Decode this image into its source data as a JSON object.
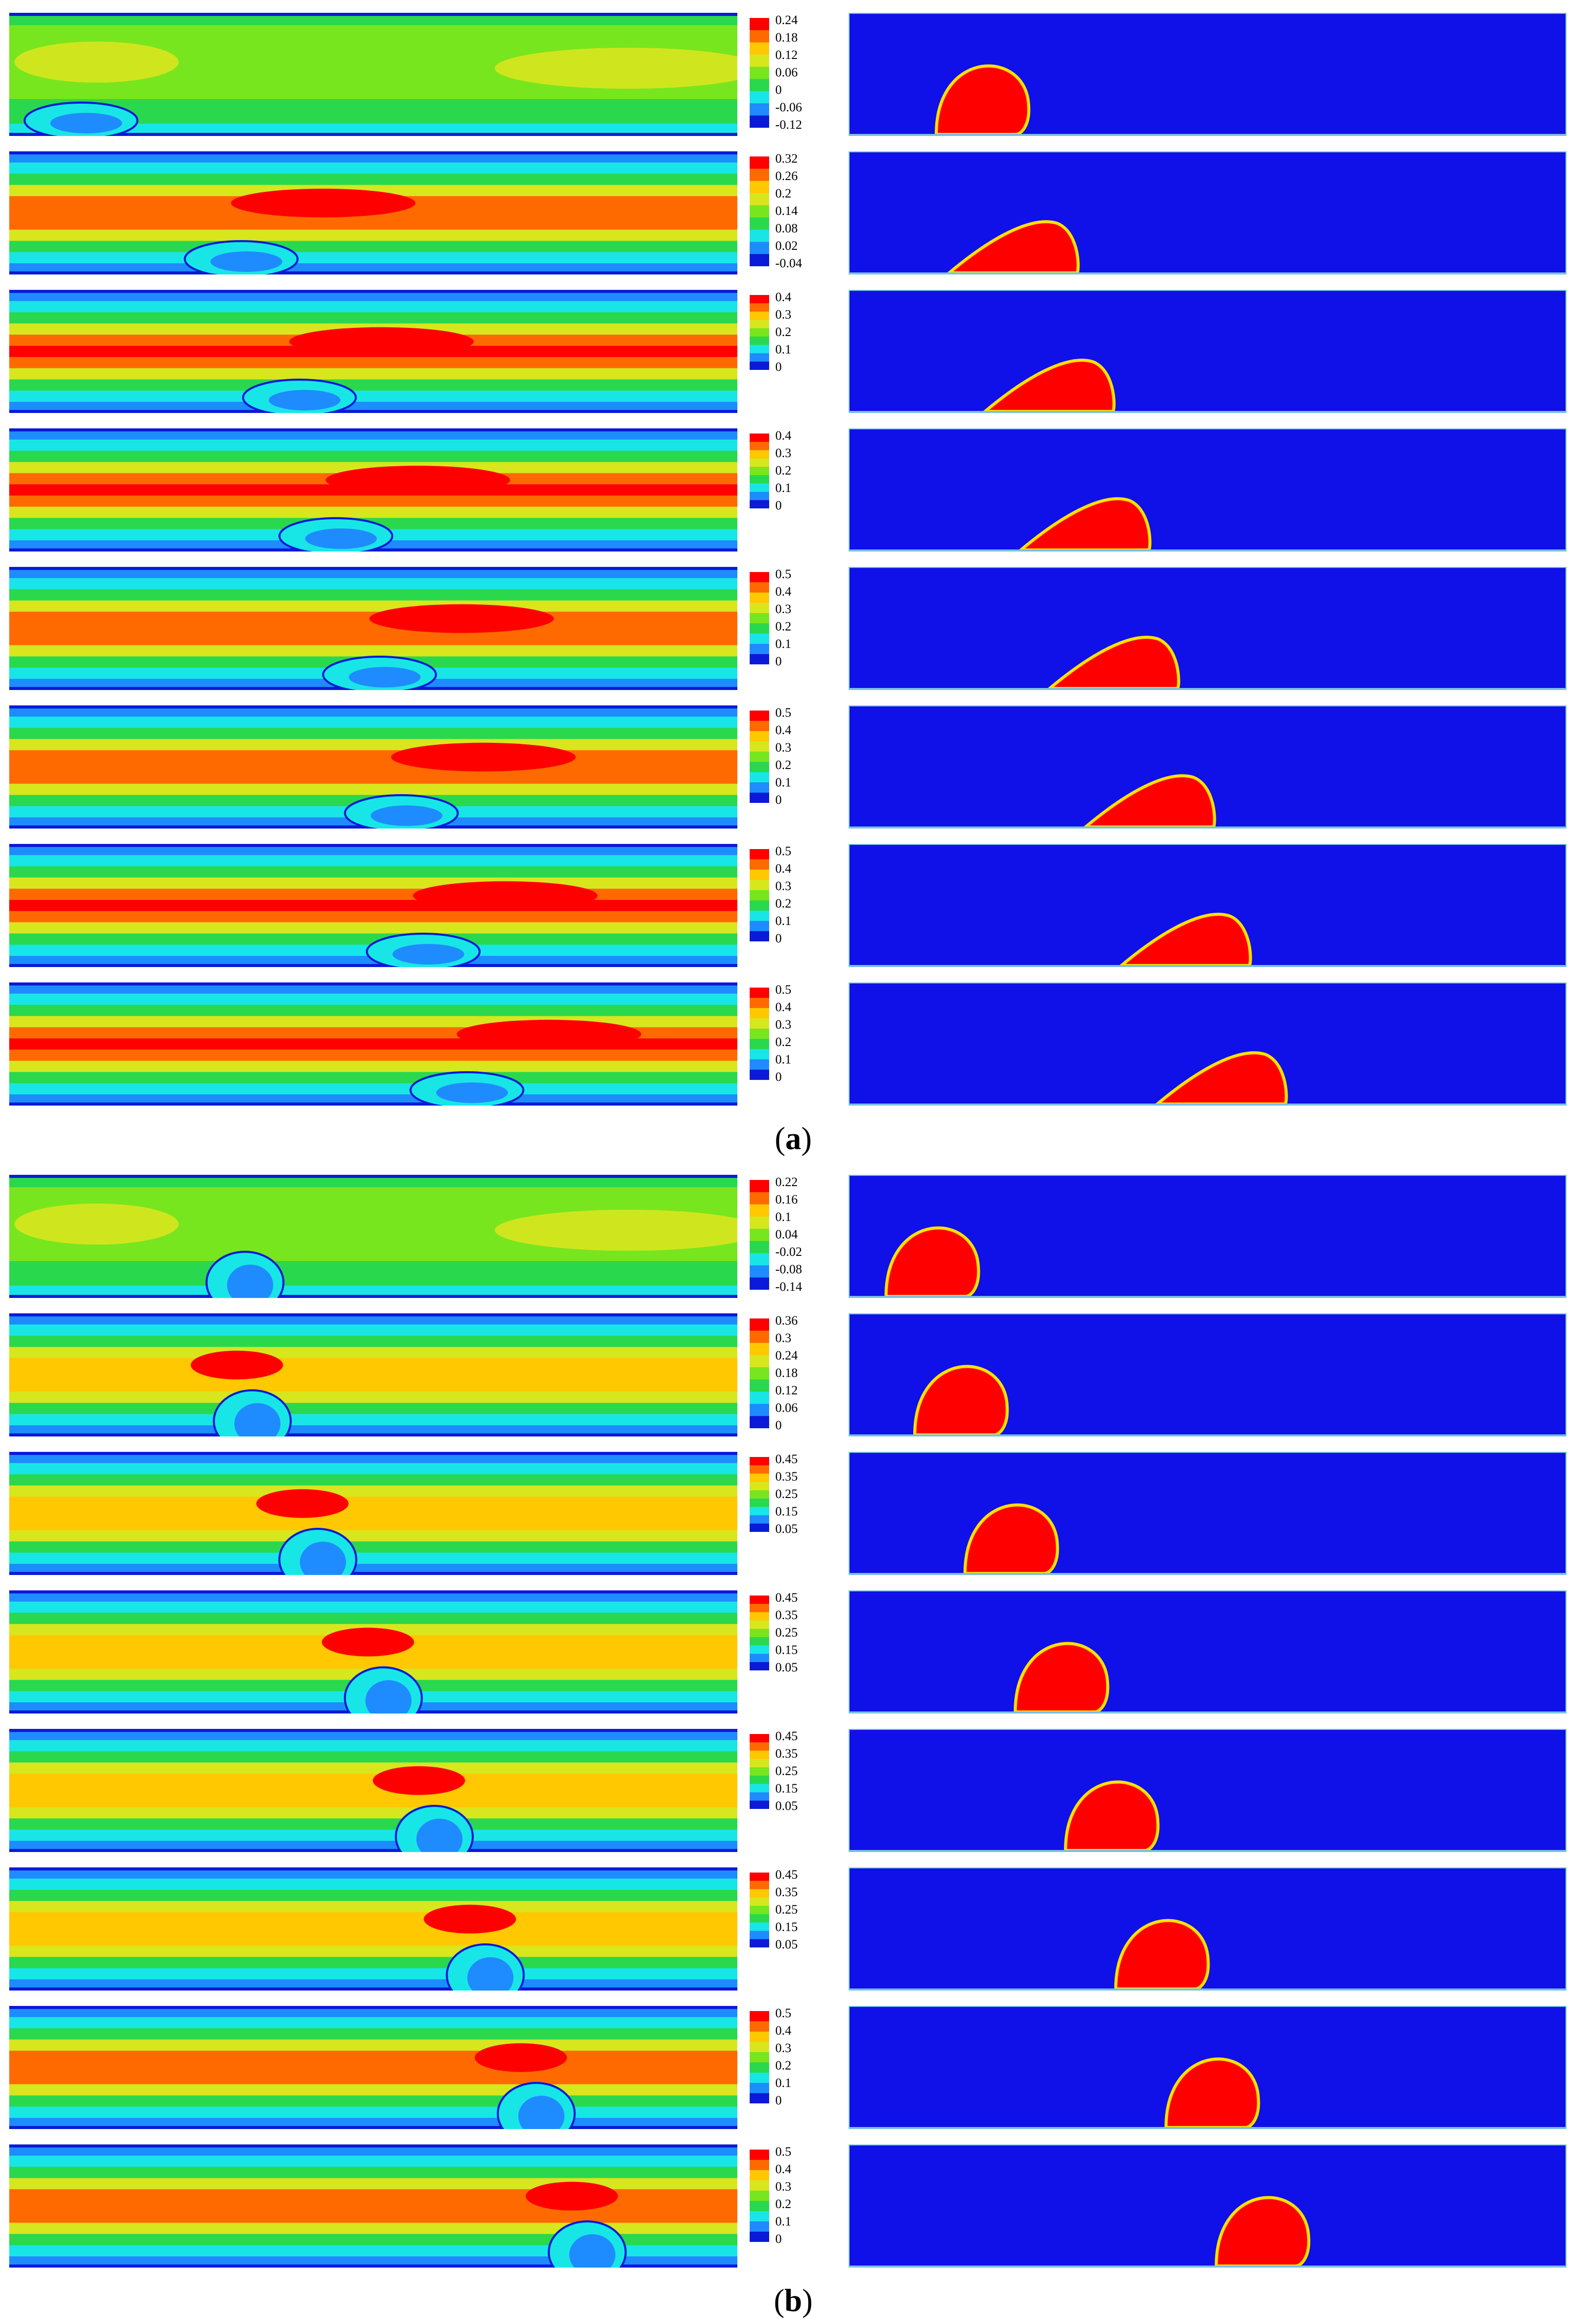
{
  "figure": {
    "caption_a": "a",
    "caption_b": "b",
    "colors": {
      "phase_background": "#1010e8",
      "droplet": "#ff0000",
      "wall": "#7ac0e0"
    },
    "palette": [
      "#0a1ad8",
      "#1e8cff",
      "#18e6e6",
      "#2ad84e",
      "#78e61e",
      "#d8e61e",
      "#ffc800",
      "#ff6a00",
      "#ff0000"
    ],
    "part_a": [
      {
        "ticks": [
          "0.24",
          "0.18",
          "0.12",
          "0.06",
          "0",
          "-0.06",
          "-0.12"
        ],
        "droplet_position": 0.19,
        "droplet_shape": "round",
        "field": "A1",
        "vortex_position": 0.0
      },
      {
        "ticks": [
          "0.32",
          "0.26",
          "0.2",
          "0.14",
          "0.08",
          "0.02",
          "-0.04"
        ],
        "droplet_position": 0.24,
        "droplet_shape": "slanted",
        "field": "A2",
        "vortex_position": 0.22
      },
      {
        "ticks": [
          "0.4",
          "0.3",
          "0.2",
          "0.1",
          "0"
        ],
        "droplet_position": 0.29,
        "droplet_shape": "slanted",
        "field": "A3",
        "vortex_position": 0.3
      },
      {
        "ticks": [
          "0.4",
          "0.3",
          "0.2",
          "0.1",
          "0"
        ],
        "droplet_position": 0.34,
        "droplet_shape": "slanted",
        "field": "A3",
        "vortex_position": 0.35
      },
      {
        "ticks": [
          "0.5",
          "0.4",
          "0.3",
          "0.2",
          "0.1",
          "0"
        ],
        "droplet_position": 0.38,
        "droplet_shape": "slanted",
        "field": "A5",
        "vortex_position": 0.41
      },
      {
        "ticks": [
          "0.5",
          "0.4",
          "0.3",
          "0.2",
          "0.1",
          "0"
        ],
        "droplet_position": 0.43,
        "droplet_shape": "slanted",
        "field": "A5",
        "vortex_position": 0.44
      },
      {
        "ticks": [
          "0.5",
          "0.4",
          "0.3",
          "0.2",
          "0.1",
          "0"
        ],
        "droplet_position": 0.48,
        "droplet_shape": "slanted",
        "field": "A3",
        "vortex_position": 0.47
      },
      {
        "ticks": [
          "0.5",
          "0.4",
          "0.3",
          "0.2",
          "0.1",
          "0"
        ],
        "droplet_position": 0.53,
        "droplet_shape": "slanted",
        "field": "A3",
        "vortex_position": 0.53
      }
    ],
    "part_b": [
      {
        "ticks": [
          "0.22",
          "0.16",
          "0.1",
          "0.04",
          "-0.02",
          "-0.08",
          "-0.14"
        ],
        "droplet_position": 0.12,
        "droplet_shape": "round",
        "field": "B1",
        "vortex_position": 0.19
      },
      {
        "ticks": [
          "0.36",
          "0.3",
          "0.24",
          "0.18",
          "0.12",
          "0.06",
          "0"
        ],
        "droplet_position": 0.16,
        "droplet_shape": "round",
        "field": "B2",
        "vortex_position": 0.2
      },
      {
        "ticks": [
          "0.45",
          "0.35",
          "0.25",
          "0.15",
          "0.05"
        ],
        "droplet_position": 0.23,
        "droplet_shape": "round",
        "field": "B3",
        "vortex_position": 0.29
      },
      {
        "ticks": [
          "0.45",
          "0.35",
          "0.25",
          "0.15",
          "0.05"
        ],
        "droplet_position": 0.3,
        "droplet_shape": "round",
        "field": "B3",
        "vortex_position": 0.38
      },
      {
        "ticks": [
          "0.45",
          "0.35",
          "0.25",
          "0.15",
          "0.05"
        ],
        "droplet_position": 0.37,
        "droplet_shape": "round",
        "field": "B3",
        "vortex_position": 0.45
      },
      {
        "ticks": [
          "0.45",
          "0.35",
          "0.25",
          "0.15",
          "0.05"
        ],
        "droplet_position": 0.44,
        "droplet_shape": "round",
        "field": "B3",
        "vortex_position": 0.52
      },
      {
        "ticks": [
          "0.5",
          "0.4",
          "0.3",
          "0.2",
          "0.1",
          "0"
        ],
        "droplet_position": 0.51,
        "droplet_shape": "round",
        "field": "B7",
        "vortex_position": 0.59
      },
      {
        "ticks": [
          "0.5",
          "0.4",
          "0.3",
          "0.2",
          "0.1",
          "0"
        ],
        "droplet_position": 0.58,
        "droplet_shape": "round",
        "field": "B7",
        "vortex_position": 0.66
      }
    ]
  }
}
